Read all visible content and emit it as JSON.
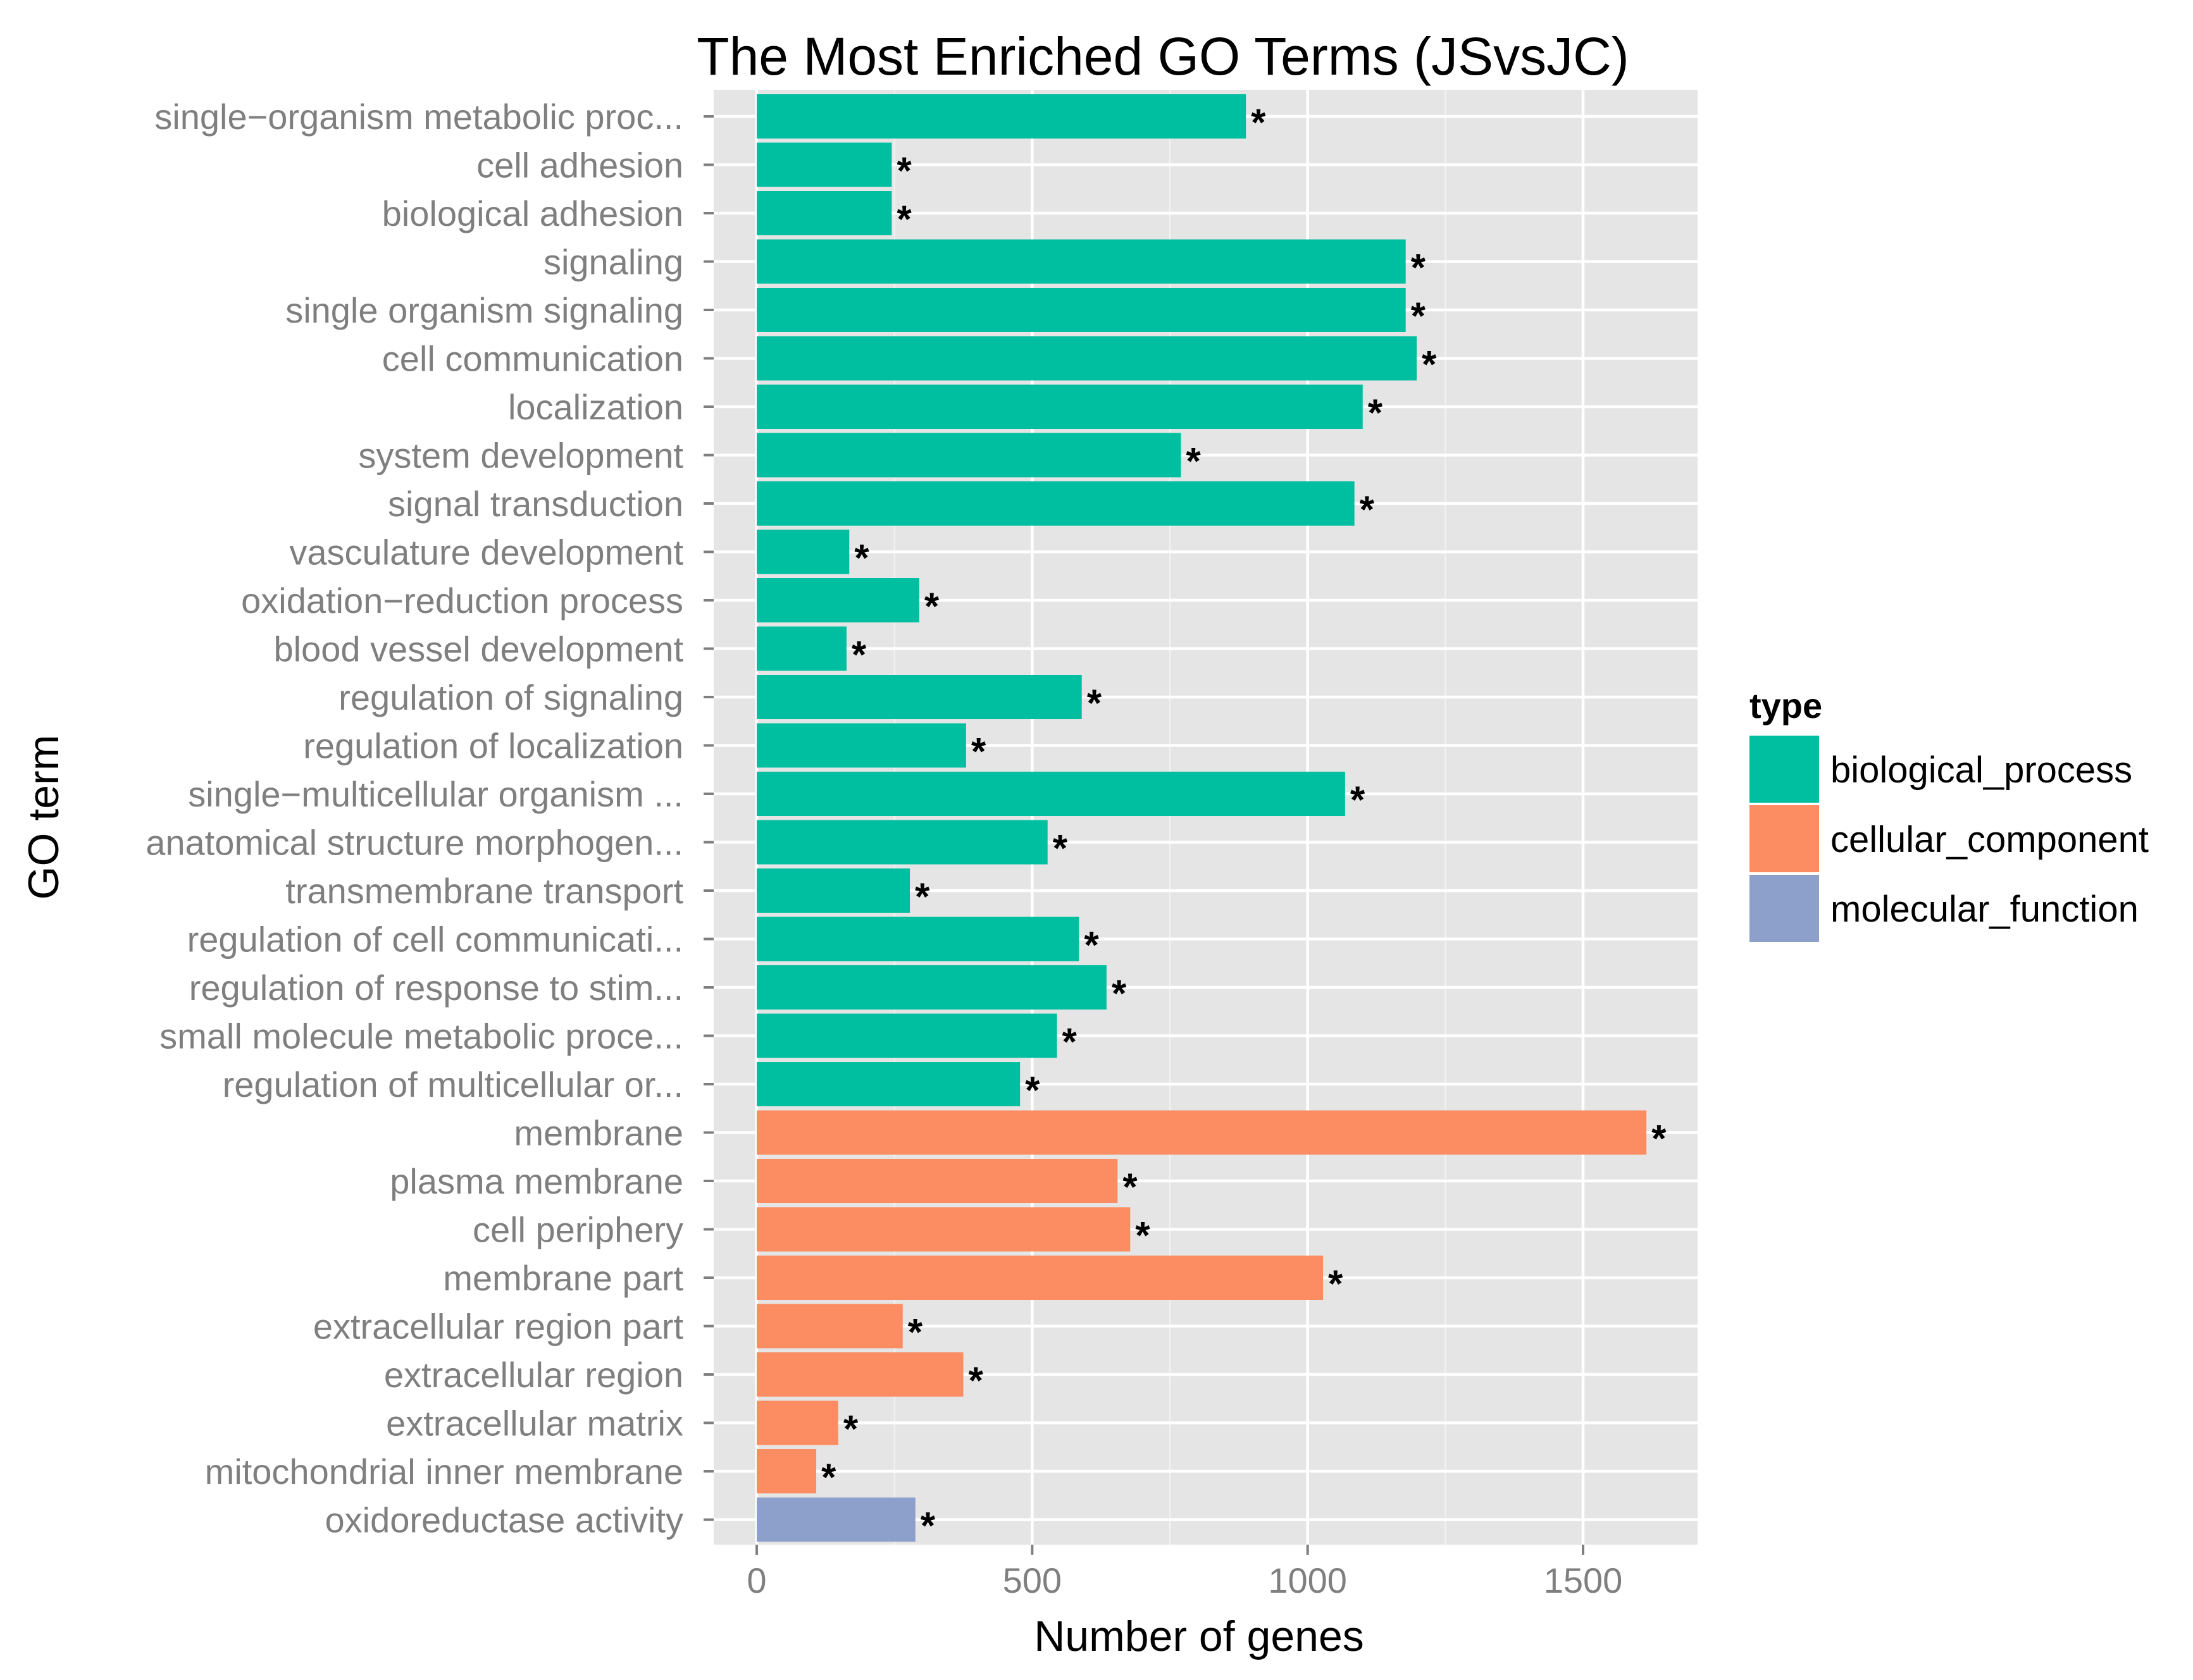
{
  "chart_data": {
    "type": "bar",
    "orientation": "horizontal",
    "title": "The Most Enriched GO Terms (JSvsJC)",
    "xlabel": "Number of genes",
    "ylabel": "GO term",
    "xlim": [
      0,
      1690
    ],
    "xticks": [
      0,
      500,
      1000,
      1500
    ],
    "grid": true,
    "legend_title": "type",
    "legend_position": "right",
    "types": [
      {
        "key": "biological_process",
        "label": "biological_process",
        "color": "#00bfa0"
      },
      {
        "key": "cellular_component",
        "label": "cellular_component",
        "color": "#fc8d62"
      },
      {
        "key": "molecular_function",
        "label": "molecular_function",
        "color": "#8da0cb"
      }
    ],
    "terms": [
      {
        "label": "single−organism metabolic proc...",
        "value": 888,
        "type": "biological_process",
        "marker": "*"
      },
      {
        "label": "cell adhesion",
        "value": 245,
        "type": "biological_process",
        "marker": "*"
      },
      {
        "label": "biological adhesion",
        "value": 245,
        "type": "biological_process",
        "marker": "*"
      },
      {
        "label": "signaling",
        "value": 1178,
        "type": "biological_process",
        "marker": "*"
      },
      {
        "label": "single organism signaling",
        "value": 1178,
        "type": "biological_process",
        "marker": "*"
      },
      {
        "label": "cell communication",
        "value": 1198,
        "type": "biological_process",
        "marker": "*"
      },
      {
        "label": "localization",
        "value": 1100,
        "type": "biological_process",
        "marker": "*"
      },
      {
        "label": "system development",
        "value": 770,
        "type": "biological_process",
        "marker": "*"
      },
      {
        "label": "signal transduction",
        "value": 1085,
        "type": "biological_process",
        "marker": "*"
      },
      {
        "label": "vasculature development",
        "value": 168,
        "type": "biological_process",
        "marker": "*"
      },
      {
        "label": "oxidation−reduction process",
        "value": 295,
        "type": "biological_process",
        "marker": "*"
      },
      {
        "label": "blood vessel development",
        "value": 163,
        "type": "biological_process",
        "marker": "*"
      },
      {
        "label": "regulation of signaling",
        "value": 590,
        "type": "biological_process",
        "marker": "*"
      },
      {
        "label": "regulation of localization",
        "value": 380,
        "type": "biological_process",
        "marker": "*"
      },
      {
        "label": "single−multicellular organism ...",
        "value": 1068,
        "type": "biological_process",
        "marker": "*"
      },
      {
        "label": "anatomical structure morphogen...",
        "value": 528,
        "type": "biological_process",
        "marker": "*"
      },
      {
        "label": "transmembrane transport",
        "value": 278,
        "type": "biological_process",
        "marker": "*"
      },
      {
        "label": "regulation of cell communicati...",
        "value": 585,
        "type": "biological_process",
        "marker": "*"
      },
      {
        "label": "regulation of response to stim...",
        "value": 635,
        "type": "biological_process",
        "marker": "*"
      },
      {
        "label": "small molecule metabolic proce...",
        "value": 545,
        "type": "biological_process",
        "marker": "*"
      },
      {
        "label": "regulation of multicellular or...",
        "value": 478,
        "type": "biological_process",
        "marker": "*"
      },
      {
        "label": "membrane",
        "value": 1615,
        "type": "cellular_component",
        "marker": "*"
      },
      {
        "label": "plasma membrane",
        "value": 655,
        "type": "cellular_component",
        "marker": "*"
      },
      {
        "label": "cell periphery",
        "value": 678,
        "type": "cellular_component",
        "marker": "*"
      },
      {
        "label": "membrane part",
        "value": 1028,
        "type": "cellular_component",
        "marker": "*"
      },
      {
        "label": "extracellular region part",
        "value": 265,
        "type": "cellular_component",
        "marker": "*"
      },
      {
        "label": "extracellular region",
        "value": 375,
        "type": "cellular_component",
        "marker": "*"
      },
      {
        "label": "extracellular matrix",
        "value": 148,
        "type": "cellular_component",
        "marker": "*"
      },
      {
        "label": "mitochondrial inner membrane",
        "value": 108,
        "type": "cellular_component",
        "marker": "*"
      },
      {
        "label": "oxidoreductase activity",
        "value": 288,
        "type": "molecular_function",
        "marker": "*"
      }
    ]
  }
}
